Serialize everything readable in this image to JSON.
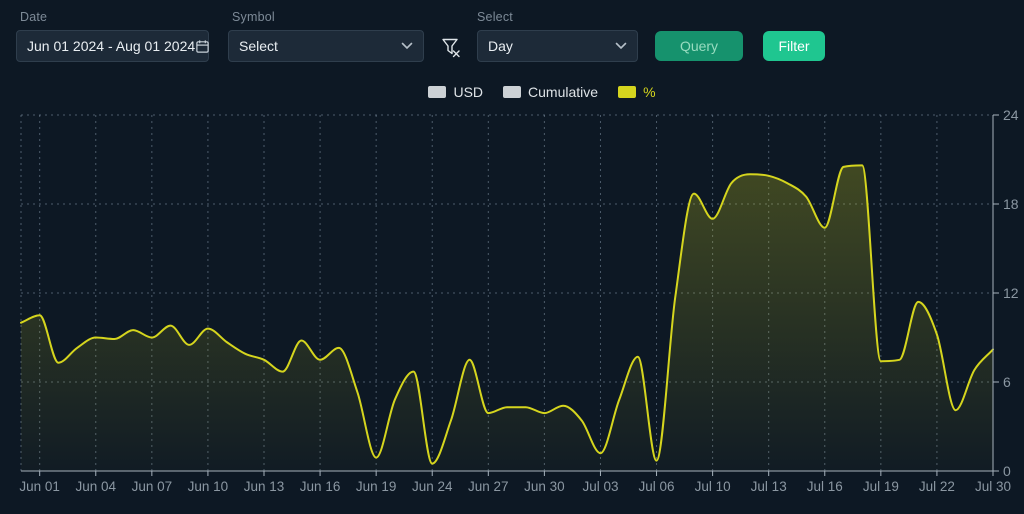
{
  "filters": {
    "date": {
      "label": "Date",
      "value": "Jun 01 2024 - Aug 01 2024"
    },
    "symbol": {
      "label": "Symbol",
      "value": "Select"
    },
    "interval": {
      "label": "Select",
      "value": "Day"
    },
    "query_label": "Query",
    "filter_label": "Filter"
  },
  "icons": {
    "calendar": "calendar-icon",
    "chevron": "chevron-down-icon",
    "clear_filter": "filter-clear-icon"
  },
  "legend": [
    {
      "label": "USD",
      "swatch": "#ccd1d5",
      "text": "#dee3e7",
      "active": false
    },
    {
      "label": "Cumulative",
      "swatch": "#ccd1d5",
      "text": "#dee3e7",
      "active": false
    },
    {
      "label": "%",
      "swatch": "#d5d51e",
      "text": "#d5d51e",
      "active": true
    }
  ],
  "chart_data": {
    "type": "area",
    "title": "",
    "xlabel": "",
    "ylabel": "",
    "ylim": [
      0,
      24
    ],
    "y_ticks": [
      0,
      6,
      12,
      18,
      24
    ],
    "y_axis_position": "right",
    "grid": "dashed",
    "legend_position": "top-center",
    "point_count": 53,
    "x_tick_labels": [
      "Jun 01",
      "Jun 04",
      "Jun 07",
      "Jun 10",
      "Jun 13",
      "Jun 16",
      "Jun 19",
      "Jun 24",
      "Jun 27",
      "Jun 30",
      "Jul 03",
      "Jul 06",
      "Jul 10",
      "Jul 13",
      "Jul 16",
      "Jul 19",
      "Jul 22",
      "Jul 30"
    ],
    "x_tick_indices": [
      1,
      4,
      7,
      10,
      13,
      16,
      19,
      22,
      25,
      28,
      31,
      34,
      37,
      40,
      43,
      46,
      49,
      52
    ],
    "series": [
      {
        "name": "%",
        "color": "#d5d51e",
        "values": [
          10.0,
          10.5,
          7.3,
          8.3,
          9.0,
          8.9,
          9.5,
          9.0,
          9.8,
          8.5,
          9.6,
          8.7,
          7.9,
          7.5,
          6.7,
          8.8,
          7.5,
          8.3,
          5.3,
          0.9,
          4.8,
          6.7,
          0.5,
          3.4,
          7.5,
          3.9,
          4.3,
          4.3,
          3.9,
          4.4,
          3.4,
          1.2,
          4.8,
          7.7,
          0.7,
          11.7,
          18.7,
          17.0,
          19.4,
          20.0,
          19.9,
          19.4,
          18.5,
          16.4,
          20.5,
          20.6,
          7.4,
          7.5,
          11.4,
          9.2,
          4.1,
          6.8,
          8.2
        ]
      }
    ],
    "colors": {
      "background": "#0d1824",
      "grid_line": "#8da0b2",
      "axis_line": "#a6b2bd",
      "axis_text": "#8b97a2",
      "area_fill_top": "rgba(213,213,30,0.26)",
      "area_fill_bottom": "rgba(213,213,30,0.02)"
    }
  }
}
